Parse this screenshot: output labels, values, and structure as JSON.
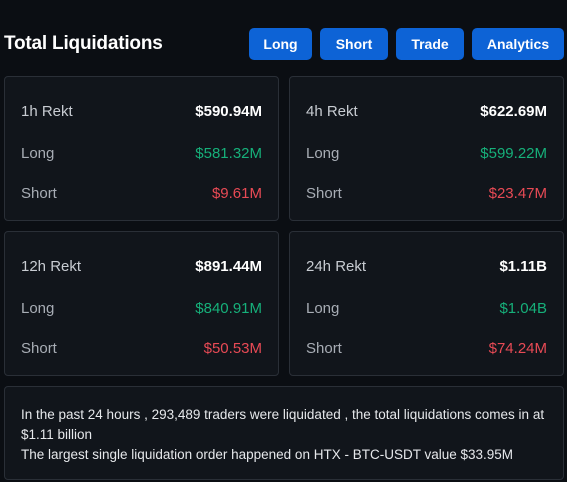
{
  "header": {
    "title": "Total Liquidations",
    "buttons": {
      "long": "Long",
      "short": "Short",
      "trade": "Trade",
      "analytics": "Analytics"
    }
  },
  "colors": {
    "accent": "#0d63d6",
    "long": "#16b07a",
    "short": "#e84a55",
    "background": "#0b0e13",
    "card": "#11151b"
  },
  "cards": {
    "h1": {
      "period": "1h Rekt",
      "total": "$590.94M",
      "long_label": "Long",
      "long_value": "$581.32M",
      "short_label": "Short",
      "short_value": "$9.61M"
    },
    "h4": {
      "period": "4h Rekt",
      "total": "$622.69M",
      "long_label": "Long",
      "long_value": "$599.22M",
      "short_label": "Short",
      "short_value": "$23.47M"
    },
    "h12": {
      "period": "12h Rekt",
      "total": "$891.44M",
      "long_label": "Long",
      "long_value": "$840.91M",
      "short_label": "Short",
      "short_value": "$50.53M"
    },
    "h24": {
      "period": "24h Rekt",
      "total": "$1.11B",
      "long_label": "Long",
      "long_value": "$1.04B",
      "short_label": "Short",
      "short_value": "$74.24M"
    }
  },
  "summary": {
    "line1": "In the past 24 hours , 293,489 traders were liquidated , the total liquidations comes in at $1.11 billion",
    "line2": "The largest single liquidation order happened on HTX - BTC-USDT value $33.95M"
  }
}
